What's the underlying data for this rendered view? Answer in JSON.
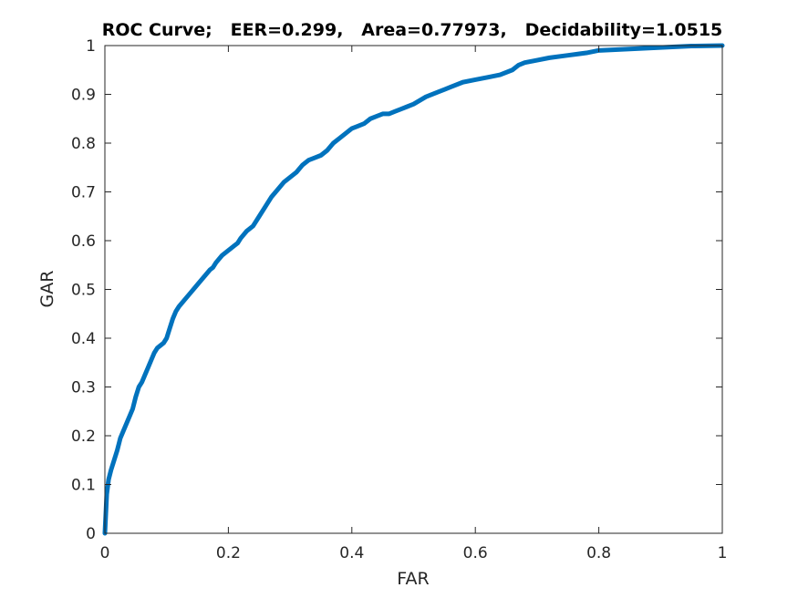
{
  "chart_data": {
    "type": "line",
    "title": "ROC Curve;   EER=0.299,   Area=0.77973,   Decidability=1.0515",
    "xlabel": "FAR",
    "ylabel": "GAR",
    "xlim": [
      0,
      1
    ],
    "ylim": [
      0,
      1
    ],
    "xticks": [
      0,
      0.2,
      0.4,
      0.6,
      0.8,
      1
    ],
    "xtick_labels": [
      "0",
      "0.2",
      "0.4",
      "0.6",
      "0.8",
      "1"
    ],
    "yticks": [
      0,
      0.1,
      0.2,
      0.3,
      0.4,
      0.5,
      0.6,
      0.7,
      0.8,
      0.9,
      1
    ],
    "ytick_labels": [
      "0",
      "0.1",
      "0.2",
      "0.3",
      "0.4",
      "0.5",
      "0.6",
      "0.7",
      "0.8",
      "0.9",
      "1"
    ],
    "grid": false,
    "series": [
      {
        "color": "#0072BD",
        "x": [
          0.0,
          0.003,
          0.006,
          0.01,
          0.015,
          0.02,
          0.025,
          0.03,
          0.04,
          0.045,
          0.05,
          0.055,
          0.06,
          0.065,
          0.07,
          0.075,
          0.08,
          0.085,
          0.09,
          0.095,
          0.1,
          0.105,
          0.11,
          0.115,
          0.12,
          0.13,
          0.14,
          0.15,
          0.16,
          0.17,
          0.175,
          0.18,
          0.19,
          0.2,
          0.21,
          0.215,
          0.22,
          0.23,
          0.24,
          0.25,
          0.26,
          0.27,
          0.28,
          0.29,
          0.3,
          0.31,
          0.32,
          0.33,
          0.34,
          0.35,
          0.36,
          0.37,
          0.38,
          0.39,
          0.4,
          0.41,
          0.42,
          0.43,
          0.44,
          0.45,
          0.46,
          0.47,
          0.48,
          0.49,
          0.5,
          0.52,
          0.54,
          0.55,
          0.56,
          0.58,
          0.6,
          0.62,
          0.64,
          0.66,
          0.67,
          0.68,
          0.7,
          0.72,
          0.75,
          0.78,
          0.8,
          0.85,
          0.9,
          0.95,
          1.0
        ],
        "y": [
          0.0,
          0.08,
          0.11,
          0.13,
          0.15,
          0.17,
          0.195,
          0.21,
          0.24,
          0.255,
          0.28,
          0.3,
          0.31,
          0.325,
          0.34,
          0.355,
          0.37,
          0.38,
          0.385,
          0.39,
          0.4,
          0.42,
          0.44,
          0.455,
          0.465,
          0.48,
          0.495,
          0.51,
          0.525,
          0.54,
          0.545,
          0.555,
          0.57,
          0.58,
          0.59,
          0.595,
          0.605,
          0.62,
          0.63,
          0.65,
          0.67,
          0.69,
          0.705,
          0.72,
          0.73,
          0.74,
          0.755,
          0.765,
          0.77,
          0.775,
          0.785,
          0.8,
          0.81,
          0.82,
          0.83,
          0.835,
          0.84,
          0.85,
          0.855,
          0.86,
          0.86,
          0.865,
          0.87,
          0.875,
          0.88,
          0.895,
          0.905,
          0.91,
          0.915,
          0.925,
          0.93,
          0.935,
          0.94,
          0.95,
          0.96,
          0.965,
          0.97,
          0.975,
          0.98,
          0.985,
          0.99,
          0.993,
          0.996,
          0.999,
          1.0
        ]
      }
    ]
  }
}
